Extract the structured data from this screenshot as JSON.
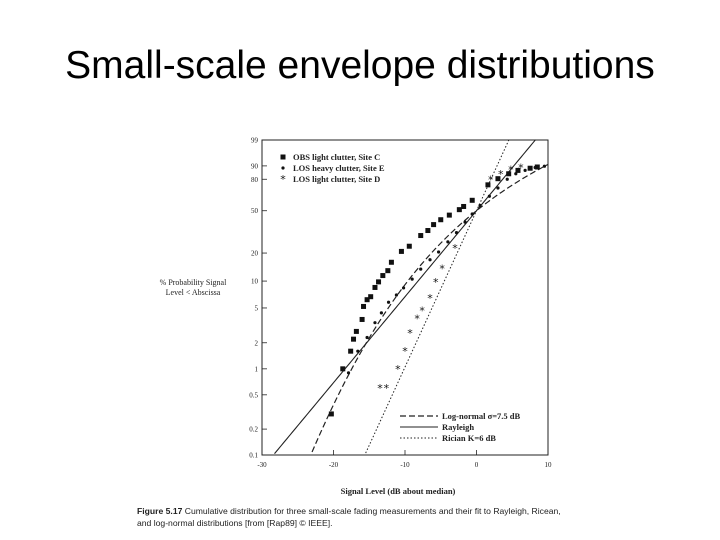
{
  "slide": {
    "title": "Small-scale envelope distributions"
  },
  "caption": {
    "figure_label": "Figure 5.17",
    "text": "Cumulative distribution for three small-scale fading measurements and their fit to Rayleigh, Ricean, and log-normal distributions [from [Rap89] © IEEE]."
  },
  "chart_data": {
    "type": "scatter",
    "title": "",
    "xlabel": "Signal Level (dB about median)",
    "ylabel": "% Probability Signal Level < Abscissa",
    "xlim": [
      -30,
      10
    ],
    "ylim": [
      0.1,
      99
    ],
    "y_scale": "rayleigh-probability",
    "x_ticks": [
      "-30",
      "-20",
      "-10",
      "0",
      "10"
    ],
    "y_ticks": [
      "0.1",
      "0.2",
      "0.5",
      "1",
      "2",
      "5",
      "10",
      "20",
      "50",
      "80",
      "90",
      "99"
    ],
    "legend_position": "top-left",
    "series": [
      {
        "name": "OBS light clutter, Site C",
        "marker": "square",
        "points": [
          [
            -20.3,
            0.3
          ],
          [
            -18.7,
            1.0
          ],
          [
            -17.6,
            1.6
          ],
          [
            -17.2,
            2.2
          ],
          [
            -16.8,
            2.7
          ],
          [
            -16.0,
            3.7
          ],
          [
            -15.8,
            5.2
          ],
          [
            -15.3,
            6.2
          ],
          [
            -14.8,
            6.7
          ],
          [
            -14.2,
            8.5
          ],
          [
            -13.7,
            9.8
          ],
          [
            -13.1,
            11.5
          ],
          [
            -12.4,
            13.0
          ],
          [
            -11.9,
            16.0
          ],
          [
            -10.5,
            20.8
          ],
          [
            -9.4,
            23.5
          ],
          [
            -7.8,
            30.0
          ],
          [
            -6.8,
            33.5
          ],
          [
            -6.0,
            38.0
          ],
          [
            -5.0,
            42.0
          ],
          [
            -3.8,
            46.0
          ],
          [
            -2.4,
            51.0
          ],
          [
            -1.8,
            54.0
          ],
          [
            -0.6,
            60.0
          ],
          [
            1.6,
            75.0
          ],
          [
            3.0,
            80.5
          ],
          [
            4.5,
            84.5
          ],
          [
            5.8,
            87.0
          ],
          [
            7.5,
            88.5
          ],
          [
            8.5,
            89.3
          ]
        ]
      },
      {
        "name": "LOS heavy clutter, Site E",
        "marker": "dot",
        "points": [
          [
            -17.9,
            0.9
          ],
          [
            -16.6,
            1.6
          ],
          [
            -15.3,
            2.3
          ],
          [
            -14.2,
            3.4
          ],
          [
            -13.3,
            4.4
          ],
          [
            -12.3,
            5.8
          ],
          [
            -11.2,
            7.0
          ],
          [
            -10.2,
            8.4
          ],
          [
            -9.0,
            10.5
          ],
          [
            -7.8,
            13.5
          ],
          [
            -6.5,
            17.0
          ],
          [
            -5.3,
            20.5
          ],
          [
            -4.0,
            26.0
          ],
          [
            -2.8,
            32.0
          ],
          [
            -1.6,
            40.0
          ],
          [
            -0.6,
            47.0
          ],
          [
            0.5,
            55.0
          ],
          [
            1.8,
            64.0
          ],
          [
            3.0,
            72.0
          ],
          [
            4.3,
            80.0
          ],
          [
            5.5,
            84.5
          ],
          [
            6.8,
            87.0
          ],
          [
            8.2,
            89.0
          ],
          [
            9.5,
            89.8
          ]
        ]
      },
      {
        "name": "LOS light clutter, Site D",
        "marker": "star",
        "points": [
          [
            -13.5,
            0.6
          ],
          [
            -12.6,
            0.6
          ],
          [
            -11.0,
            1.0
          ],
          [
            -10.0,
            1.6
          ],
          [
            -9.3,
            2.6
          ],
          [
            -8.3,
            3.8
          ],
          [
            -7.6,
            4.7
          ],
          [
            -6.5,
            6.5
          ],
          [
            -5.7,
            9.8
          ],
          [
            -4.8,
            13.7
          ],
          [
            -3.0,
            22.5
          ],
          [
            2.0,
            80.0
          ],
          [
            3.4,
            84.5
          ],
          [
            4.8,
            87.5
          ],
          [
            6.2,
            89.0
          ]
        ]
      }
    ],
    "fitted_curves": [
      {
        "name": "Log-normal σ=7.5 dB",
        "style": "dashed"
      },
      {
        "name": "Rayleigh",
        "style": "solid"
      },
      {
        "name": "Rician K=6 dB",
        "style": "dotted"
      }
    ]
  }
}
